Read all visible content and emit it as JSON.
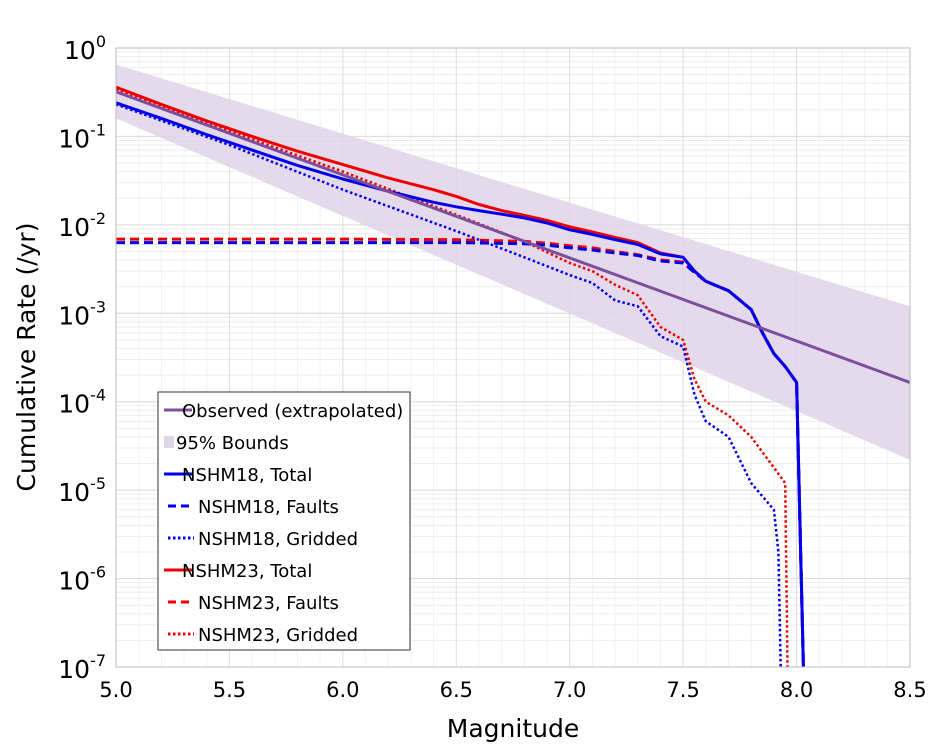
{
  "chart_data": {
    "type": "line",
    "xlabel": "Magnitude",
    "ylabel": "Cumulative Rate (/yr)",
    "xlim": [
      5.0,
      8.5
    ],
    "ylim": [
      1e-07,
      1
    ],
    "yscale": "log",
    "grid": true,
    "legend_position": "bottom-left",
    "x_ticks": [
      {
        "value": 5.0,
        "label": "5.0"
      },
      {
        "value": 5.5,
        "label": "5.5"
      },
      {
        "value": 6.0,
        "label": "6.0"
      },
      {
        "value": 6.5,
        "label": "6.5"
      },
      {
        "value": 7.0,
        "label": "7.0"
      },
      {
        "value": 7.5,
        "label": "7.5"
      },
      {
        "value": 8.0,
        "label": "8.0"
      },
      {
        "value": 8.5,
        "label": "8.5"
      }
    ],
    "y_ticks": [
      {
        "value": 1e-07,
        "base": "10",
        "exp": "-7"
      },
      {
        "value": 1e-06,
        "base": "10",
        "exp": "-6"
      },
      {
        "value": 1e-05,
        "base": "10",
        "exp": "-5"
      },
      {
        "value": 0.0001,
        "base": "10",
        "exp": "-4"
      },
      {
        "value": 0.001,
        "base": "10",
        "exp": "-3"
      },
      {
        "value": 0.01,
        "base": "10",
        "exp": "-2"
      },
      {
        "value": 0.1,
        "base": "10",
        "exp": "-1"
      },
      {
        "value": 1,
        "base": "10",
        "exp": "0"
      }
    ],
    "band": {
      "name": "95% Bounds",
      "color": "#e0d4e8",
      "x": [
        5.0,
        8.5
      ],
      "upper": [
        0.65,
        0.0012
      ],
      "lower": [
        0.16,
        2.2e-05
      ]
    },
    "series": [
      {
        "name": "Observed (extrapolated)",
        "color": "#7b4f9e",
        "dash": "solid",
        "x": [
          5.0,
          8.5
        ],
        "y": [
          0.32,
          0.000165
        ]
      },
      {
        "name": "NSHM18, Total",
        "color": "#0000ee",
        "dash": "solid",
        "x": [
          5.0,
          5.2,
          5.4,
          5.6,
          5.8,
          6.0,
          6.2,
          6.4,
          6.5,
          6.6,
          6.7,
          6.8,
          6.9,
          7.0,
          7.1,
          7.2,
          7.3,
          7.4,
          7.5,
          7.55,
          7.6,
          7.7,
          7.8,
          7.85,
          7.9,
          7.95,
          8.0,
          8.03
        ],
        "y": [
          0.24,
          0.16,
          0.105,
          0.07,
          0.047,
          0.033,
          0.024,
          0.018,
          0.016,
          0.0145,
          0.0132,
          0.012,
          0.0105,
          0.0088,
          0.0078,
          0.0068,
          0.006,
          0.0047,
          0.0043,
          0.003,
          0.0023,
          0.0018,
          0.0011,
          0.0006,
          0.00035,
          0.00025,
          0.000165,
          1e-07
        ]
      },
      {
        "name": "NSHM18, Faults",
        "color": "#0000ee",
        "dash": "dashed",
        "x": [
          5.0,
          6.0,
          6.5,
          6.8,
          6.9,
          7.0,
          7.1,
          7.2,
          7.3,
          7.4,
          7.5,
          7.55,
          7.6,
          7.7,
          7.8,
          7.85,
          7.9,
          7.95,
          8.0,
          8.03
        ],
        "y": [
          0.0063,
          0.0063,
          0.0063,
          0.0061,
          0.0059,
          0.0055,
          0.0052,
          0.0048,
          0.0045,
          0.0039,
          0.0037,
          0.0029,
          0.0023,
          0.0018,
          0.0011,
          0.0006,
          0.00035,
          0.00025,
          0.000165,
          1e-07
        ]
      },
      {
        "name": "NSHM18, Gridded",
        "color": "#0000ee",
        "dash": "dotted",
        "x": [
          5.0,
          5.5,
          6.0,
          6.5,
          6.8,
          7.0,
          7.1,
          7.2,
          7.3,
          7.4,
          7.5,
          7.55,
          7.6,
          7.7,
          7.8,
          7.9,
          7.92,
          7.93
        ],
        "y": [
          0.23,
          0.08,
          0.025,
          0.0085,
          0.0043,
          0.0027,
          0.0022,
          0.0014,
          0.0012,
          0.00055,
          0.00042,
          0.00012,
          6e-05,
          4e-05,
          1.2e-05,
          6e-06,
          2e-06,
          1e-07
        ]
      },
      {
        "name": "NSHM23, Total",
        "color": "#ee0000",
        "dash": "solid",
        "x": [
          5.0,
          5.2,
          5.4,
          5.6,
          5.8,
          6.0,
          6.2,
          6.4,
          6.5,
          6.6,
          6.7,
          6.8,
          6.9,
          7.0,
          7.1,
          7.2,
          7.3,
          7.4,
          7.5,
          7.55,
          7.6,
          7.7,
          7.8,
          7.85,
          7.9,
          7.95,
          8.0,
          8.03
        ],
        "y": [
          0.36,
          0.23,
          0.15,
          0.1,
          0.068,
          0.048,
          0.034,
          0.025,
          0.021,
          0.017,
          0.0145,
          0.0128,
          0.0112,
          0.0095,
          0.0083,
          0.0072,
          0.0063,
          0.0048,
          0.0043,
          0.003,
          0.0023,
          0.0018,
          0.0011,
          0.0006,
          0.00035,
          0.00025,
          0.000165,
          1e-07
        ]
      },
      {
        "name": "NSHM23, Faults",
        "color": "#ee0000",
        "dash": "dashed",
        "x": [
          5.0,
          6.0,
          6.5,
          6.8,
          6.9,
          7.0,
          7.1,
          7.2,
          7.3,
          7.4,
          7.5,
          7.55,
          7.6,
          7.7,
          7.8,
          7.85,
          7.9,
          7.95,
          8.0,
          8.03
        ],
        "y": [
          0.0069,
          0.0069,
          0.0068,
          0.0065,
          0.0062,
          0.0058,
          0.0055,
          0.005,
          0.0046,
          0.004,
          0.0038,
          0.0029,
          0.0023,
          0.0018,
          0.0011,
          0.0006,
          0.00035,
          0.00025,
          0.000165,
          1e-07
        ]
      },
      {
        "name": "NSHM23, Gridded",
        "color": "#ee0000",
        "dash": "dotted",
        "x": [
          5.0,
          5.5,
          6.0,
          6.5,
          6.8,
          7.0,
          7.1,
          7.2,
          7.3,
          7.4,
          7.5,
          7.55,
          7.6,
          7.7,
          7.8,
          7.9,
          7.95,
          7.96
        ],
        "y": [
          0.34,
          0.115,
          0.04,
          0.013,
          0.0065,
          0.0037,
          0.003,
          0.0021,
          0.0016,
          0.0007,
          0.0005,
          0.00018,
          0.0001,
          7e-05,
          4e-05,
          1.8e-05,
          1.2e-05,
          1e-07
        ]
      }
    ]
  }
}
